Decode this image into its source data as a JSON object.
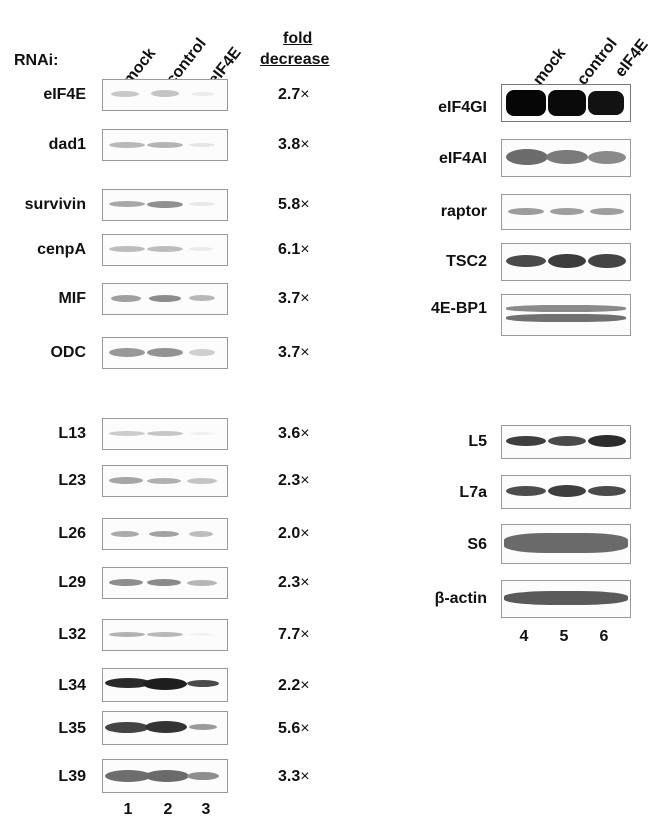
{
  "left": {
    "rnai_label": "RNAi:",
    "lanes": [
      "mock",
      "control",
      "eIF4E"
    ],
    "fold_header_1": "fold",
    "fold_header_2": "decrease",
    "rows": [
      {
        "label": "eIF4E",
        "fold": "2.7"
      },
      {
        "label": "dad1",
        "fold": "3.8"
      },
      {
        "label": "survivin",
        "fold": "5.8"
      },
      {
        "label": "cenpA",
        "fold": "6.1"
      },
      {
        "label": "MIF",
        "fold": "3.7"
      },
      {
        "label": "ODC",
        "fold": "3.7"
      },
      {
        "label": "L13",
        "fold": "3.6"
      },
      {
        "label": "L23",
        "fold": "2.3"
      },
      {
        "label": "L26",
        "fold": "2.0"
      },
      {
        "label": "L29",
        "fold": "2.3"
      },
      {
        "label": "L32",
        "fold": "7.7"
      },
      {
        "label": "L34",
        "fold": "2.2"
      },
      {
        "label": "L35",
        "fold": "5.6"
      },
      {
        "label": "L39",
        "fold": "3.3"
      }
    ],
    "times_symbol": "×",
    "lane_numbers": [
      "1",
      "2",
      "3"
    ]
  },
  "right": {
    "lanes": [
      "mock",
      "control",
      "eIF4E"
    ],
    "rows": [
      {
        "label": "eIF4GI"
      },
      {
        "label": "eIF4AI"
      },
      {
        "label": "raptor"
      },
      {
        "label": "TSC2"
      },
      {
        "label": "4E-BP1"
      },
      {
        "label": "L5"
      },
      {
        "label": "L7a"
      },
      {
        "label": "S6"
      },
      {
        "label": "β-actin"
      }
    ],
    "lane_numbers": [
      "4",
      "5",
      "6"
    ]
  }
}
